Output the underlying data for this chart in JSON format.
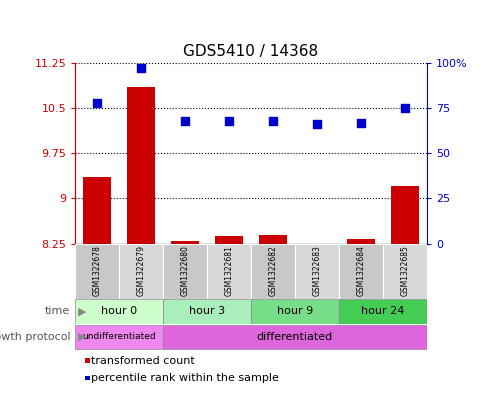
{
  "title": "GDS5410 / 14368",
  "samples": [
    "GSM1322678",
    "GSM1322679",
    "GSM1322680",
    "GSM1322681",
    "GSM1322682",
    "GSM1322683",
    "GSM1322684",
    "GSM1322685"
  ],
  "transformed_count": [
    9.35,
    10.85,
    8.3,
    8.38,
    8.4,
    8.22,
    8.32,
    9.2
  ],
  "percentile_rank": [
    78,
    97,
    68,
    68,
    68,
    66,
    67,
    75
  ],
  "ylim_left": [
    8.25,
    11.25
  ],
  "ylim_right": [
    0,
    100
  ],
  "yticks_left": [
    8.25,
    9.0,
    9.75,
    10.5,
    11.25
  ],
  "yticks_right": [
    0,
    25,
    50,
    75,
    100
  ],
  "ytick_labels_left": [
    "8.25",
    "9",
    "9.75",
    "10.5",
    "11.25"
  ],
  "ytick_labels_right": [
    "0",
    "25",
    "50",
    "75",
    "100%"
  ],
  "bar_color": "#cc0000",
  "dot_color": "#0000cc",
  "bar_bottom": 8.25,
  "time_groups": [
    {
      "label": "hour 0",
      "start": 0,
      "end": 2,
      "color": "#ccffcc"
    },
    {
      "label": "hour 3",
      "start": 2,
      "end": 4,
      "color": "#aaeebb"
    },
    {
      "label": "hour 9",
      "start": 4,
      "end": 6,
      "color": "#77dd88"
    },
    {
      "label": "hour 24",
      "start": 6,
      "end": 8,
      "color": "#44cc55"
    }
  ],
  "growth_protocol_groups": [
    {
      "label": "undifferentiated",
      "start": 0,
      "end": 2,
      "color": "#ee88ee"
    },
    {
      "label": "differentiated",
      "start": 2,
      "end": 8,
      "color": "#dd66dd"
    }
  ],
  "legend_red_label": "transformed count",
  "legend_blue_label": "percentile rank within the sample",
  "xlabel_time": "time",
  "xlabel_growth": "growth protocol",
  "sample_col_colors": [
    "#c8c8c8",
    "#d8d8d8",
    "#c8c8c8",
    "#d8d8d8",
    "#c8c8c8",
    "#d8d8d8",
    "#c8c8c8",
    "#d8d8d8"
  ]
}
